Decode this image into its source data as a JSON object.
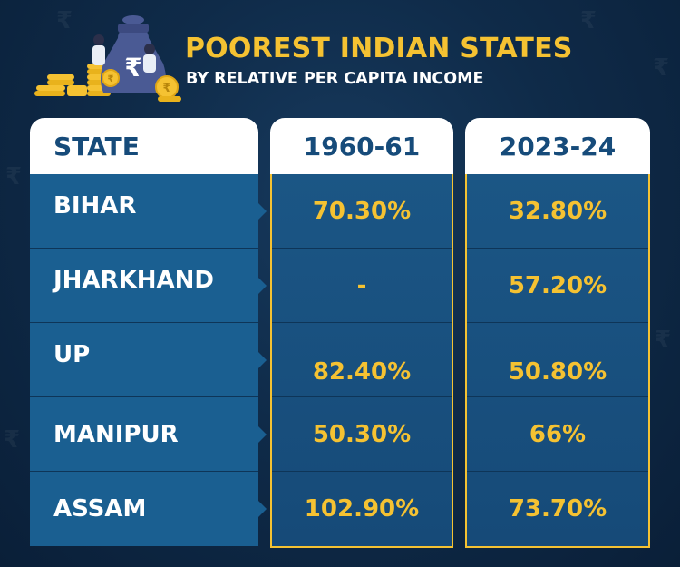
{
  "header": {
    "title": "POOREST INDIAN STATES",
    "subtitle": "BY RELATIVE PER CAPITA INCOME",
    "logo_icon": "money-bag-with-rupee-and-coins-icon"
  },
  "colors": {
    "title": "#f5c232",
    "value": "#f5c232",
    "header_text": "#164b7a",
    "background": "#0f2b49"
  },
  "table": {
    "columns": [
      "STATE",
      "1960-61",
      "2023-24"
    ],
    "rows": [
      {
        "state": "BIHAR",
        "y1960": "70.30%",
        "y2023": "32.80%"
      },
      {
        "state": "JHARKHAND",
        "y1960": "-",
        "y2023": "57.20%"
      },
      {
        "state": "UP",
        "y1960": "82.40%",
        "y2023": "50.80%"
      },
      {
        "state": "MANIPUR",
        "y1960": "50.30%",
        "y2023": "66%"
      },
      {
        "state": "ASSAM",
        "y1960": "102.90%",
        "y2023": "73.70%"
      }
    ]
  },
  "chart_data": {
    "type": "table",
    "title": "POOREST INDIAN STATES",
    "subtitle": "BY RELATIVE PER CAPITA INCOME",
    "columns": [
      "STATE",
      "1960-61",
      "2023-24"
    ],
    "categories": [
      "BIHAR",
      "JHARKHAND",
      "UP",
      "MANIPUR",
      "ASSAM"
    ],
    "series": [
      {
        "name": "1960-61",
        "values": [
          70.3,
          null,
          82.4,
          50.3,
          102.9
        ]
      },
      {
        "name": "2023-24",
        "values": [
          32.8,
          57.2,
          50.8,
          66,
          73.7
        ]
      }
    ]
  }
}
